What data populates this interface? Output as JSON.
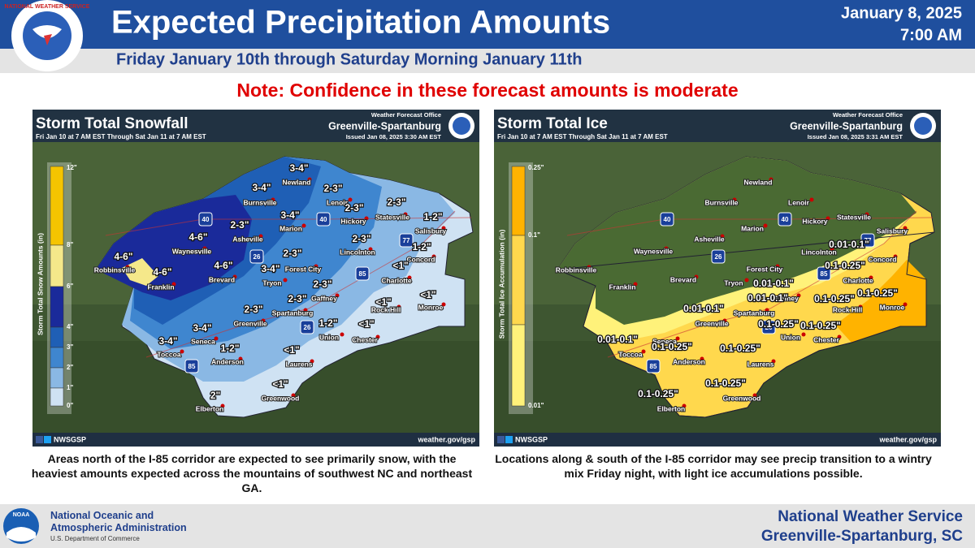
{
  "header": {
    "logo_text": "NATIONAL WEATHER SERVICE",
    "title": "Expected Precipitation Amounts",
    "subtitle": "Friday January 10th through Saturday Morning January 11th",
    "date": "January 8, 2025",
    "time": "7:00 AM"
  },
  "note": "Note: Confidence in these forecast amounts is moderate",
  "panels": [
    {
      "title": "Storm Total Snowfall",
      "period": "Fri Jan 10 at 7 AM EST Through Sat Jan 11 at 7 AM EST",
      "office_label": "Weather Forecast Office",
      "office": "Greenville-Spartanburg",
      "issued": "Issued Jan 08, 2025 3:30 AM EST",
      "legend_title": "Storm Total Snow Amounts (in)",
      "legend_labels": [
        "12\"",
        "8\"",
        "6\"",
        "4\"",
        "3\"",
        "2\"",
        "1\"",
        "0\""
      ],
      "cities": [
        "Newland",
        "Burnsville",
        "Lenoir",
        "Hickory",
        "Statesville",
        "Salisbury",
        "Marion",
        "Asheville",
        "Waynesville",
        "Robbinsville",
        "Franklin",
        "Brevard",
        "Forest City",
        "Lincolnton",
        "Concord",
        "Charlotte",
        "Tryon",
        "Gaffney",
        "Spartanburg",
        "Monroe",
        "Rock Hill",
        "Greenville",
        "Union",
        "Chester",
        "Seneca",
        "Toccoa",
        "Anderson",
        "Laurens",
        "Greenwood",
        "Elberton"
      ],
      "shields": [
        "40",
        "40",
        "26",
        "85",
        "77",
        "26",
        "85"
      ],
      "amounts": [
        "3-4\"",
        "3-4\"",
        "2-3\"",
        "2-3\"",
        "2-3\"",
        "3-4\"",
        "1-2\"",
        "2-3\"",
        "4-6\"",
        "2-3\"",
        "4-6\"",
        "2-3\"",
        "1-2\"",
        "<1\"",
        "4-6\"",
        "4-6\"",
        "3-4\"",
        "2-3\"",
        "2-3\"",
        "<1\"",
        "<1\"",
        "2-3\"",
        "1-2\"",
        "<1\"",
        "3-4\"",
        "3-4\"",
        "1-2\"",
        "<1\"",
        "<1\"",
        "2\""
      ],
      "social": "NWSGSP",
      "url": "weather.gov/gsp",
      "caption": "Areas north of the I-85 corridor are expected to see primarily snow, with the heaviest amounts expected across the mountains of southwest NC and northeast GA."
    },
    {
      "title": "Storm Total Ice",
      "period": "Fri Jan 10 at 7 AM EST Through Sat Jan 11 at 7 AM EST",
      "office_label": "Weather Forecast Office",
      "office": "Greenville-Spartanburg",
      "issued": "Issued Jan 08, 2025 3:31 AM EST",
      "legend_title": "Storm Total Ice Accumulation (in)",
      "legend_labels": [
        "0.25\"",
        "0.1\"",
        "0.01\""
      ],
      "cities": [
        "Newland",
        "Burnsville",
        "Lenoir",
        "Hickory",
        "Statesville",
        "Salisbury",
        "Marion",
        "Asheville",
        "Waynesville",
        "Robbinsville",
        "Franklin",
        "Brevard",
        "Forest City",
        "Lincolnton",
        "Concord",
        "Charlotte",
        "Tryon",
        "Gaffney",
        "Spartanburg",
        "Monroe",
        "Rock Hill",
        "Greenville",
        "Union",
        "Chester",
        "Seneca",
        "Toccoa",
        "Anderson",
        "Laurens",
        "Greenwood",
        "Elberton"
      ],
      "shields": [
        "40",
        "40",
        "26",
        "85",
        "77",
        "26",
        "85"
      ],
      "amounts": [
        "0.01-0.1\"",
        "0.1-0.25\"",
        "0.01-0.1\"",
        "0.01-0.1\"",
        "0.1-0.25\"",
        "0.1-0.25\"",
        "0.01-0.1\"",
        "0.1-0.25\"",
        "0.1-0.25\"",
        "0.01-0.1\"",
        "0.1-0.25\"",
        "0.1-0.25\"",
        "0.1-0.25\"",
        "0.1-0.25\""
      ],
      "social": "NWSGSP",
      "url": "weather.gov/gsp",
      "caption": "Locations along & south of the I-85 corridor may see precip transition to a wintry mix Friday night, with light ice accumulations possible."
    }
  ],
  "footer": {
    "noaa_logo": "NOAA",
    "agency": "National Oceanic and Atmospheric Administration",
    "department": "U.S. Department of Commerce",
    "nws": "National Weather Service",
    "office": "Greenville-Spartanburg, SC"
  }
}
